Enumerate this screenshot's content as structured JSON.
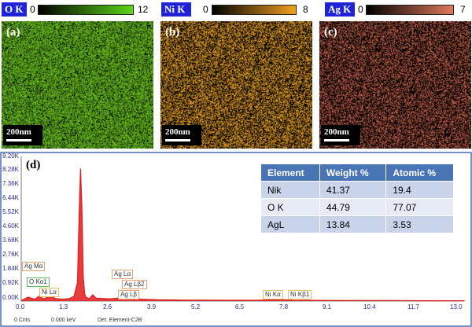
{
  "color_scales": [
    {
      "tag": "O K",
      "min": "0",
      "max": "12",
      "color": "#5cd61a"
    },
    {
      "tag": "Ni K",
      "min": "0",
      "max": "8",
      "color": "#f0a020"
    },
    {
      "tag": "Ag K",
      "min": "0",
      "max": "7",
      "color": "#e07a5a"
    }
  ],
  "panels": [
    {
      "label": "(a)",
      "scale": "200nm",
      "color": "#6fcc20"
    },
    {
      "label": "(b)",
      "scale": "200nm",
      "color": "#e8a020"
    },
    {
      "label": "(c)",
      "scale": "200nm",
      "color": "#c4604a"
    }
  ],
  "spectrum": {
    "label": "(d)",
    "y_ticks": [
      "9.20K",
      "8.28K",
      "7.36K",
      "6.44K",
      "5.52K",
      "4.60K",
      "3.68K",
      "2.76K",
      "1.84K",
      "0.92K",
      "0.00K"
    ],
    "x_ticks": [
      "0.0",
      "1.3",
      "2.6",
      "3.9",
      "5.2",
      "6.5",
      "7.8",
      "9.1",
      "10.4",
      "11.7",
      "13.0"
    ],
    "peak_labels": [
      "Ag Mα",
      "O  Kα1",
      "Ni Lα",
      "Ag Lα",
      "Ag Lβ2",
      "Ag Lβ",
      "Ni Kα",
      "Ni Kβ1"
    ],
    "footer": {
      "cnts": "0 Cnts",
      "kev": "0.000 keV",
      "det": "Det: Element-C2B"
    },
    "line_color": "#e31a1c"
  },
  "chart_data": {
    "type": "line",
    "title": "",
    "xlabel": "",
    "ylabel": "",
    "xlim": [
      0,
      13.0
    ],
    "ylim": [
      0,
      9.2
    ],
    "x": [
      0.0,
      0.2,
      0.3,
      0.4,
      0.53,
      0.65,
      0.75,
      0.85,
      1.0,
      1.2,
      1.4,
      1.55,
      1.65,
      1.7,
      1.74,
      1.78,
      1.82,
      1.86,
      1.9,
      2.0,
      2.1,
      2.2,
      2.6,
      3.0,
      3.5,
      4.0,
      5.0,
      6.0,
      7.0,
      7.5,
      8.0,
      9.0,
      10.0,
      11.0,
      12.0,
      13.0
    ],
    "y": [
      0.03,
      0.25,
      0.18,
      0.12,
      0.32,
      0.14,
      0.22,
      0.35,
      0.16,
      0.12,
      0.15,
      0.3,
      1.2,
      5.5,
      8.4,
      6.0,
      1.6,
      0.45,
      0.25,
      0.15,
      0.4,
      0.18,
      0.14,
      0.22,
      0.12,
      0.08,
      0.06,
      0.05,
      0.05,
      0.1,
      0.05,
      0.04,
      0.03,
      0.03,
      0.02,
      0.02
    ]
  },
  "table": {
    "headers": [
      "Element",
      "Weight %",
      "Atomic %"
    ],
    "rows": [
      [
        "Nik",
        "41.37",
        "19.4"
      ],
      [
        "O K",
        "44.79",
        "77.07"
      ],
      [
        "AgL",
        "13.84",
        "3.53"
      ]
    ]
  }
}
